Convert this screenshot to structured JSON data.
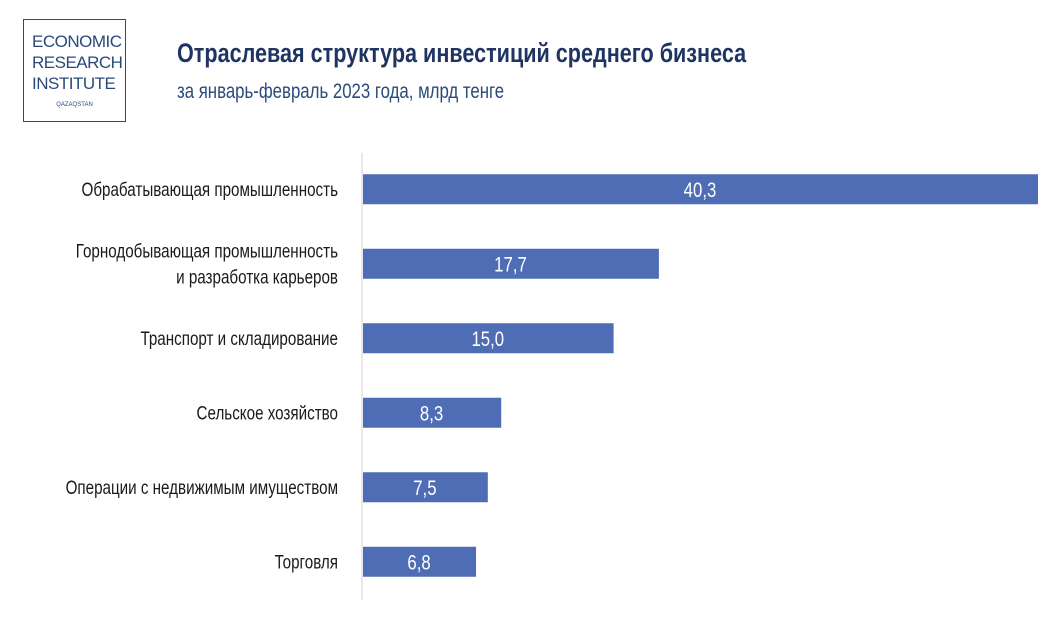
{
  "logo": {
    "line1": "ECONOMIC",
    "line2": "RESEARCH",
    "line3": "INSTITUTE",
    "line4": "QAZAQSTAN"
  },
  "chart_data": {
    "type": "bar",
    "orientation": "horizontal",
    "title": "Отраслевая структура инвестиций среднего бизнеса",
    "subtitle": "за январь-февраль 2023 года, млрд тенге",
    "categories": [
      [
        "Обрабатывающая  промышленность"
      ],
      [
        "Горнодобывающая промышленность",
        "и разработка карьеров"
      ],
      [
        "Транспорт и складирование"
      ],
      [
        "Сельское хозяйство"
      ],
      [
        "Операции с недвижимым имуществом"
      ],
      [
        "Торговля"
      ]
    ],
    "values": [
      40.3,
      17.7,
      15.0,
      8.3,
      7.5,
      6.8
    ],
    "data_labels": [
      "40,3",
      "17,7",
      "15,0",
      "8,3",
      "7,5",
      "6,8"
    ],
    "xlim": [
      0,
      40.3
    ],
    "grid": false,
    "bar_color": "#4f6db5",
    "title_color": "#1f3462"
  }
}
